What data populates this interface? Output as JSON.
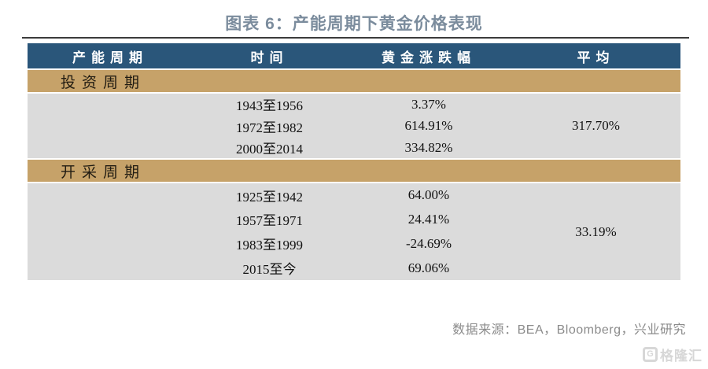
{
  "title": "图表 6：产能周期下黄金价格表现",
  "table": {
    "headers": [
      "产能周期",
      "时间",
      "黄金涨跌幅",
      "平均"
    ],
    "sections": [
      {
        "label": "投资周期",
        "average": "317.70%",
        "rows": [
          {
            "time": "1943至1956",
            "change": "3.37%"
          },
          {
            "time": "1972至1982",
            "change": "614.91%"
          },
          {
            "time": "2000至2014",
            "change": "334.82%"
          }
        ]
      },
      {
        "label": "开采周期",
        "average": "33.19%",
        "rows": [
          {
            "time": "1925至1942",
            "change": "64.00%"
          },
          {
            "time": "1957至1971",
            "change": "24.41%"
          },
          {
            "time": "1983至1999",
            "change": "-24.69%"
          },
          {
            "time": "2015至今",
            "change": "69.06%"
          }
        ]
      }
    ]
  },
  "footer": {
    "source": "数据来源：BEA，Bloomberg，兴业研究"
  },
  "watermark": {
    "logo": "G",
    "text": "格隆汇"
  },
  "colors": {
    "header_bg": "#2a567a",
    "section_bg": "#c6a269",
    "row_bg": "#dbdbdb",
    "title_text": "#7b8c9d",
    "rule": "#3b3b3b",
    "source_text": "#8b8b8b",
    "watermark": "#d7d7d7"
  }
}
